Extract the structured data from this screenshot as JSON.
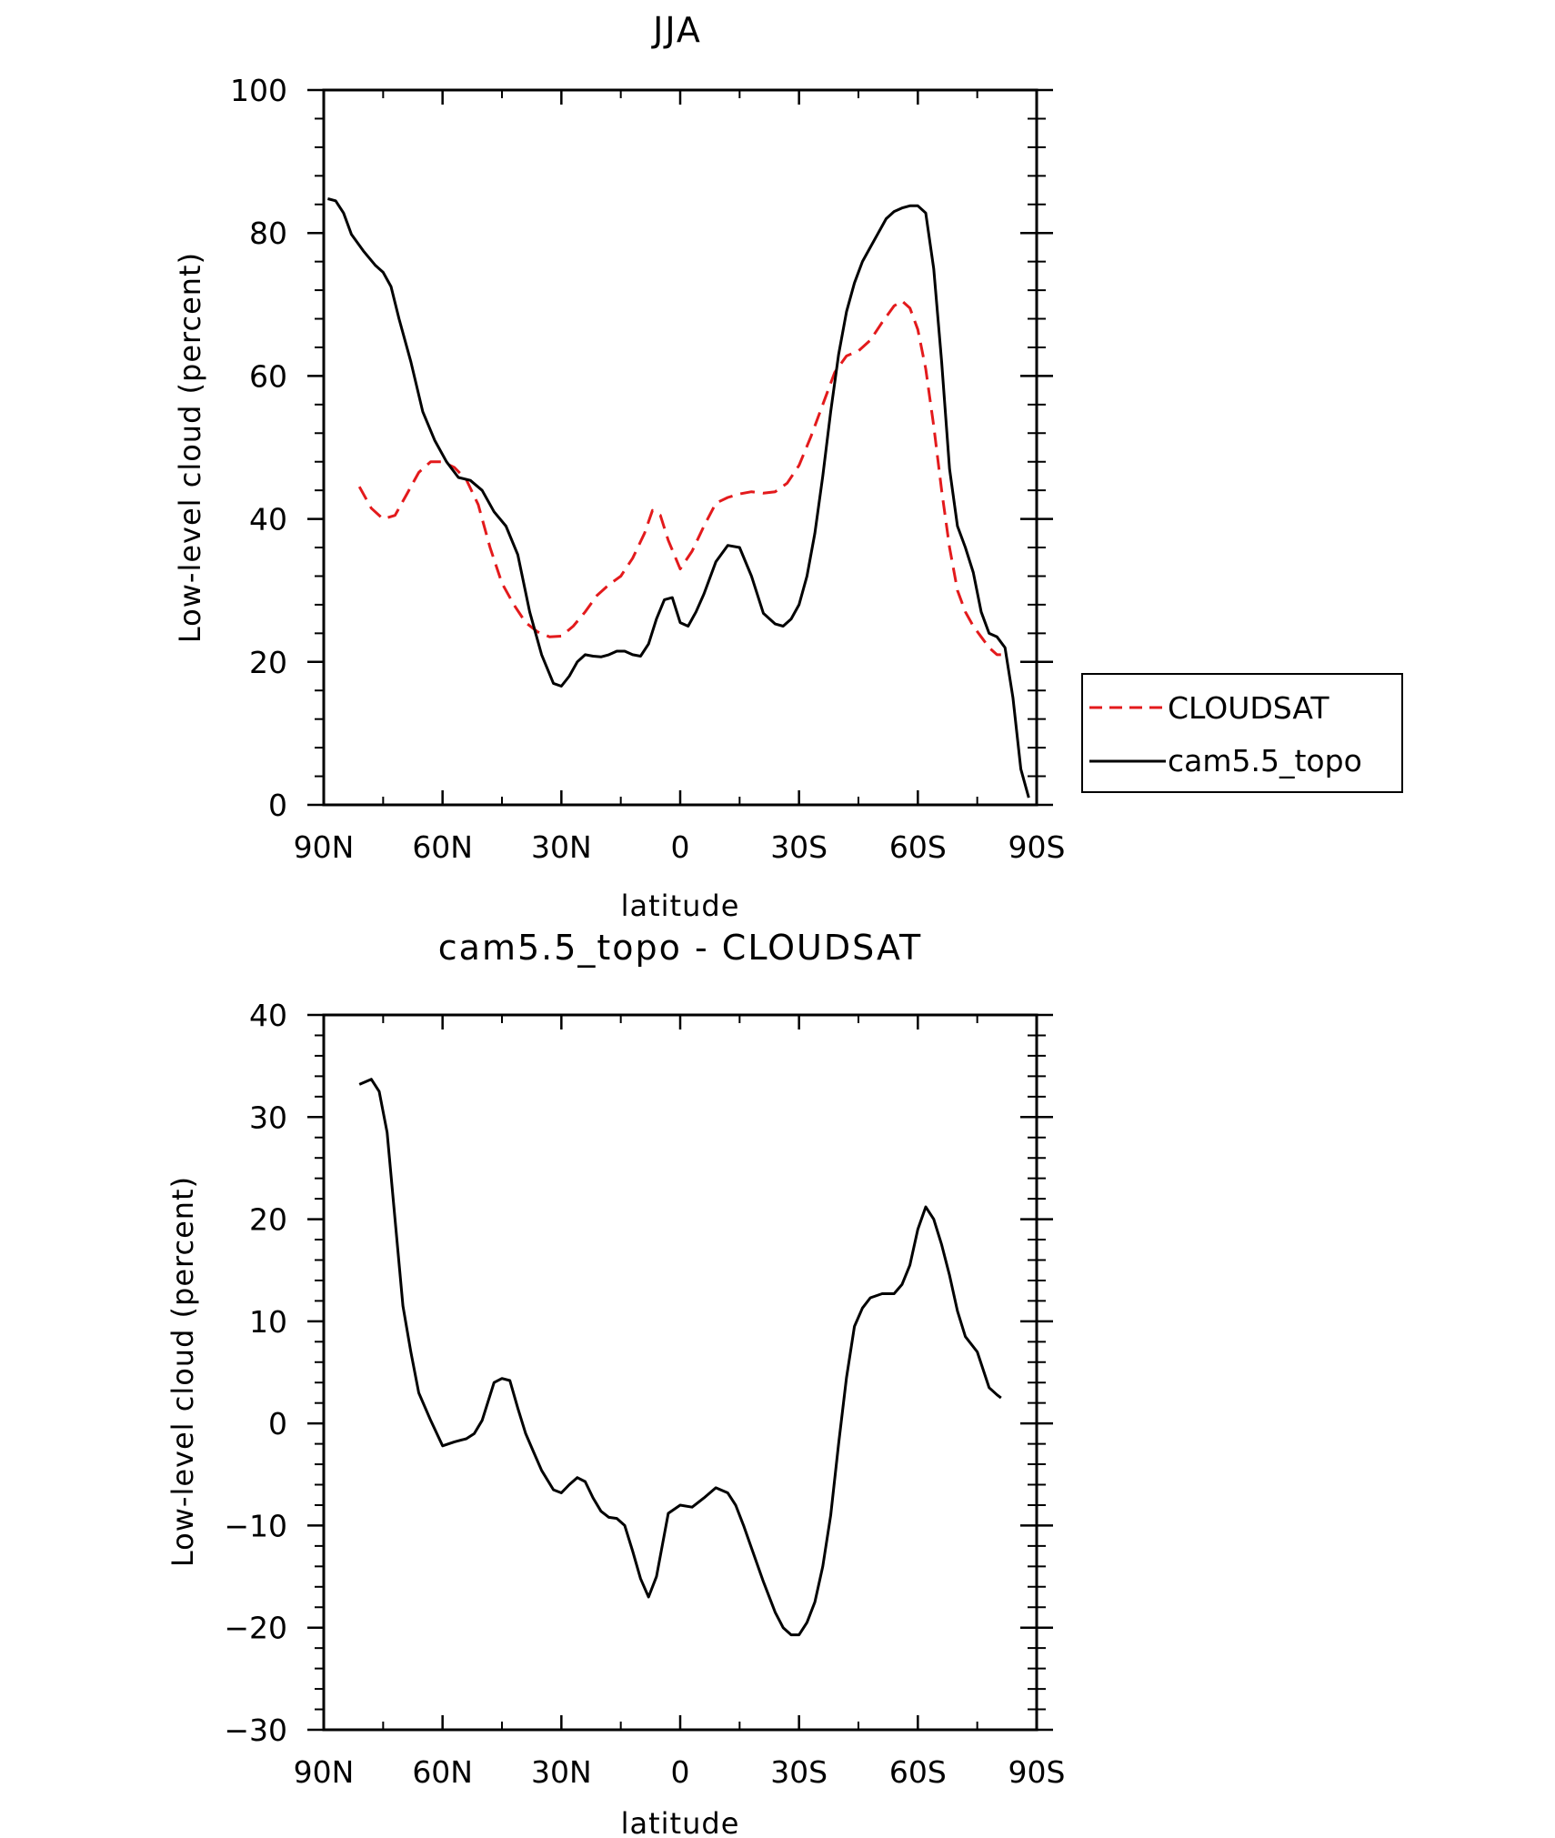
{
  "chart_data": [
    {
      "type": "line",
      "title": "JJA",
      "xlabel": "latitude",
      "ylabel": "Low-level cloud (percent)",
      "xlim": [
        90,
        -90
      ],
      "ylim": [
        0,
        100
      ],
      "xticks": [
        90,
        60,
        30,
        0,
        -30,
        -60,
        -90
      ],
      "xtick_labels": [
        "90N",
        "60N",
        "30N",
        "0",
        "30S",
        "60S",
        "90S"
      ],
      "yticks": [
        0,
        20,
        40,
        60,
        80,
        100
      ],
      "ytick_labels": [
        "0",
        "20",
        "40",
        "60",
        "80",
        "100"
      ],
      "grid": false,
      "legend_position": "right",
      "series": [
        {
          "name": "CLOUDSAT",
          "color": "#e31a1c",
          "dash": "dashed",
          "x": [
            81,
            78,
            75,
            72,
            69,
            66,
            63,
            60,
            57,
            54,
            51,
            48,
            45,
            42,
            39,
            36,
            33,
            30,
            27,
            24,
            21,
            18,
            15,
            12,
            9,
            7,
            5,
            3,
            0,
            -3,
            -6,
            -9,
            -12,
            -15,
            -18,
            -21,
            -24,
            -27,
            -30,
            -33,
            -36,
            -39,
            -42,
            -45,
            -48,
            -51,
            -54,
            -56,
            -58,
            -60,
            -62,
            -64,
            -66,
            -68,
            -70,
            -72,
            -74,
            -76,
            -78,
            -80,
            -81
          ],
          "y": [
            44.5,
            41.5,
            40.0,
            40.5,
            43.5,
            46.5,
            48.0,
            48.0,
            47.2,
            45.5,
            42.0,
            36.0,
            31.0,
            28.0,
            25.5,
            24.2,
            23.5,
            23.6,
            25.0,
            27.0,
            29.3,
            30.8,
            32.0,
            34.5,
            38.0,
            41.2,
            40.5,
            37.0,
            33.0,
            35.5,
            39.0,
            42.2,
            43.0,
            43.5,
            43.8,
            43.6,
            43.8,
            45.0,
            47.5,
            51.5,
            56.0,
            60.5,
            62.8,
            63.5,
            65.0,
            67.5,
            69.8,
            70.5,
            69.5,
            66.5,
            61.0,
            53.0,
            44.0,
            36.0,
            30.0,
            27.0,
            25.0,
            23.5,
            22.0,
            21.0,
            21.0
          ]
        },
        {
          "name": "cam5.5_topo",
          "color": "#000000",
          "dash": "solid",
          "x": [
            89,
            87,
            85,
            83,
            80,
            77,
            75,
            73,
            71,
            68,
            65,
            62,
            59,
            56,
            53,
            50,
            47,
            44,
            41,
            38,
            35,
            32,
            30,
            28,
            26,
            24,
            22,
            20,
            18,
            16,
            14,
            12,
            10,
            8,
            6,
            4,
            2,
            0,
            -2,
            -4,
            -6,
            -9,
            -12,
            -15,
            -18,
            -21,
            -24,
            -26,
            -28,
            -30,
            -32,
            -34,
            -36,
            -38,
            -40,
            -42,
            -44,
            -46,
            -48,
            -50,
            -52,
            -54,
            -56,
            -58,
            -60,
            -62,
            -64,
            -66,
            -68,
            -70,
            -72,
            -74,
            -76,
            -78,
            -80,
            -82,
            -84,
            -86,
            -88
          ],
          "y": [
            84.8,
            84.5,
            82.8,
            79.8,
            77.5,
            75.5,
            74.5,
            72.5,
            68.0,
            62.0,
            55.0,
            51.0,
            48.0,
            45.8,
            45.4,
            44.0,
            41.0,
            39.0,
            35.0,
            27.0,
            21.0,
            17.0,
            16.6,
            18.0,
            20.0,
            21.0,
            20.8,
            20.7,
            21.0,
            21.5,
            21.5,
            21.0,
            20.8,
            22.5,
            26.0,
            28.7,
            29.0,
            25.5,
            25.0,
            27.0,
            29.5,
            34.0,
            36.3,
            36.0,
            32.0,
            26.8,
            25.3,
            25.0,
            26.0,
            28.0,
            32.0,
            38.0,
            46.0,
            55.0,
            63.0,
            69.0,
            73.0,
            76.0,
            78.0,
            80.0,
            82.0,
            83.0,
            83.5,
            83.8,
            83.8,
            82.8,
            75.0,
            62.0,
            47.0,
            39.0,
            36.0,
            32.5,
            27.0,
            24.0,
            23.5,
            22.0,
            15.0,
            5.0,
            1.0
          ]
        }
      ]
    },
    {
      "type": "line",
      "title": "cam5.5_topo - CLOUDSAT",
      "xlabel": "latitude",
      "ylabel": "Low-level cloud (percent)",
      "xlim": [
        90,
        -90
      ],
      "ylim": [
        -30,
        40
      ],
      "xticks": [
        90,
        60,
        30,
        0,
        -30,
        -60,
        -90
      ],
      "xtick_labels": [
        "90N",
        "60N",
        "30N",
        "0",
        "30S",
        "60S",
        "90S"
      ],
      "yticks": [
        -30,
        -20,
        -10,
        0,
        10,
        20,
        30,
        40
      ],
      "ytick_labels": [
        "−30",
        "−20",
        "−10",
        "0",
        "10",
        "20",
        "30",
        "40"
      ],
      "grid": false,
      "series": [
        {
          "color": "#000000",
          "dash": "solid",
          "x": [
            81,
            78,
            76,
            74,
            72,
            70,
            68,
            66,
            63,
            60,
            57,
            54,
            52,
            50,
            47,
            45,
            43,
            41,
            39,
            37,
            35,
            32,
            30,
            28,
            26,
            24,
            22,
            20,
            18,
            16,
            14,
            12,
            10,
            8,
            6,
            3,
            0,
            -3,
            -6,
            -9,
            -12,
            -14,
            -16,
            -18,
            -21,
            -24,
            -26,
            -28,
            -30,
            -32,
            -34,
            -36,
            -38,
            -40,
            -42,
            -44,
            -46,
            -48,
            -51,
            -54,
            -56,
            -58,
            -60,
            -62,
            -64,
            -66,
            -68,
            -70,
            -72,
            -75,
            -78,
            -80,
            -81
          ],
          "y": [
            33.2,
            33.7,
            32.5,
            28.5,
            20.0,
            11.5,
            7.0,
            3.0,
            0.3,
            -2.2,
            -1.8,
            -1.5,
            -1.0,
            0.3,
            4.0,
            4.4,
            4.2,
            1.5,
            -1.0,
            -2.8,
            -4.6,
            -6.5,
            -6.8,
            -6.0,
            -5.3,
            -5.7,
            -7.3,
            -8.6,
            -9.2,
            -9.3,
            -10.0,
            -12.5,
            -15.2,
            -17.0,
            -15.0,
            -8.8,
            -8.0,
            -8.2,
            -7.3,
            -6.3,
            -6.8,
            -8.0,
            -10.0,
            -12.2,
            -15.5,
            -18.5,
            -20.0,
            -20.7,
            -20.7,
            -19.5,
            -17.5,
            -14.0,
            -9.0,
            -2.0,
            4.5,
            9.5,
            11.3,
            12.3,
            12.7,
            12.7,
            13.6,
            15.5,
            19.0,
            21.2,
            20.0,
            17.5,
            14.5,
            11.0,
            8.5,
            7.0,
            3.5,
            2.8,
            2.5
          ]
        }
      ]
    }
  ],
  "legend": [
    {
      "label": "CLOUDSAT",
      "color": "#e31a1c",
      "dash": "dashed"
    },
    {
      "label": "cam5.5_topo",
      "color": "#000000",
      "dash": "solid"
    }
  ]
}
